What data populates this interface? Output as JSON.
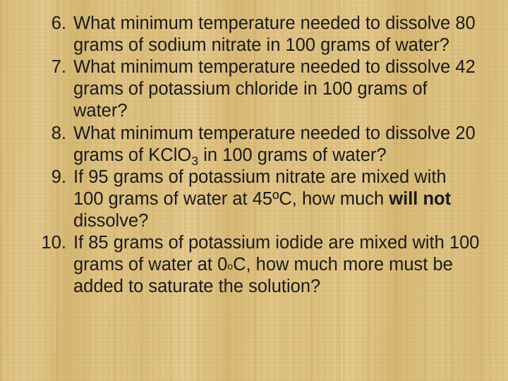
{
  "slide": {
    "background": {
      "style": "woven-bamboo-mat",
      "base_color": "#ddc180",
      "accent_colors": [
        "#d6b873",
        "#e5cb90",
        "#d9bc7a"
      ]
    },
    "text_color": "#1a1a1a",
    "font_family": "Arial",
    "font_size_pt": 19,
    "line_height": 1.22,
    "list_start": 6,
    "items": [
      {
        "n": "6.",
        "text_html": "What minimum temperature needed to dissolve 80 grams of sodium nitrate in 100 grams  of water?"
      },
      {
        "n": "7.",
        "text_html": " What minimum temperature needed to dissolve 42 grams of potassium chloride in 100 grams of water?"
      },
      {
        "n": "8.",
        "text_html": " What minimum temperature needed to dissolve 20 grams of  KClO<span class=\"sub\">3</span> in 100 grams of water?"
      },
      {
        "n": "9.",
        "text_html": "If 95 grams of potassium nitrate are mixed with 100 grams of water at 45ºC, how much <span class=\"bold\">will not</span> dissolve?"
      },
      {
        "n": "10.",
        "text_html": "If 85 grams of potassium iodide are mixed with 100 grams of water at 0<span class=\"sup\">o</span>C, how much more must be added to saturate the solution?"
      }
    ]
  }
}
